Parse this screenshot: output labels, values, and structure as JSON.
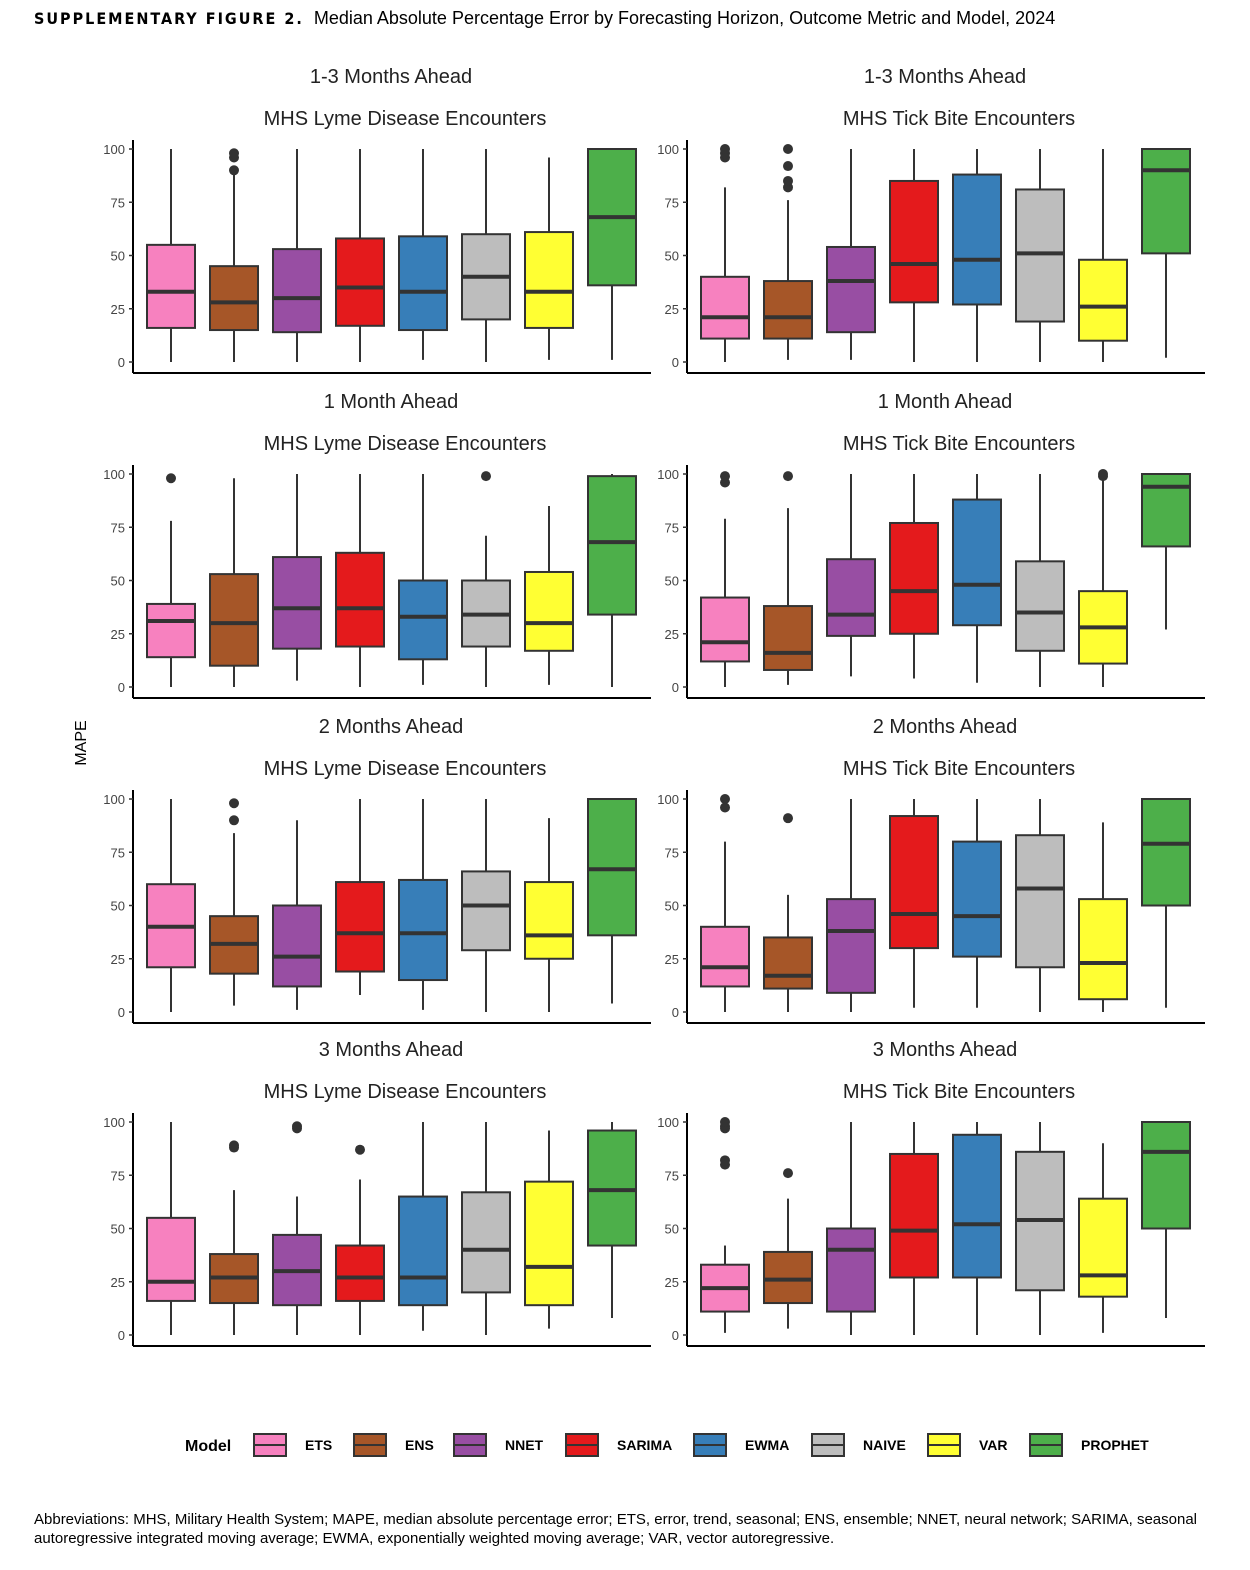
{
  "figure": {
    "label": "SUPPLEMENTARY FIGURE 2.",
    "title": "Median Absolute Percentage Error by Forecasting Horizon, Outcome Metric and Model, 2024"
  },
  "ylabel": "MAPE",
  "legend": {
    "title": "Model",
    "items": [
      {
        "name": "ETS",
        "color": "#F781BF"
      },
      {
        "name": "ENS",
        "color": "#A65628"
      },
      {
        "name": "NNET",
        "color": "#984EA3"
      },
      {
        "name": "SARIMA",
        "color": "#E41A1C"
      },
      {
        "name": "EWMA",
        "color": "#377EB8"
      },
      {
        "name": "NAIVE",
        "color": "#BDBDBD"
      },
      {
        "name": "VAR",
        "color": "#FFFF33"
      },
      {
        "name": "PROPHET",
        "color": "#4DAF4A"
      }
    ]
  },
  "footnote": "Abbreviations: MHS, Military Health System; MAPE, median absolute percentage error; ETS, error, trend, seasonal; ENS, ensemble; NNET, neural network; SARIMA, seasonal autoregressive integrated moving average; EWMA, exponentially weighted moving average; VAR, vector autoregressive.",
  "chart_data": [
    {
      "type": "box",
      "title": "1-3 Months Ahead",
      "subtitle": "MHS Lyme Disease Encounters",
      "ylabel": "MAPE",
      "ylim": [
        0,
        100
      ],
      "yticks": [
        0,
        25,
        50,
        75,
        100
      ],
      "categories": [
        "ETS",
        "ENS",
        "NNET",
        "SARIMA",
        "EWMA",
        "NAIVE",
        "VAR",
        "PROPHET"
      ],
      "boxes": [
        [
          0,
          16,
          33,
          55,
          100
        ],
        [
          0,
          15,
          28,
          45,
          88
        ],
        [
          0,
          14,
          30,
          53,
          100
        ],
        [
          0,
          17,
          35,
          58,
          100
        ],
        [
          1,
          15,
          33,
          59,
          100
        ],
        [
          0,
          20,
          40,
          60,
          100
        ],
        [
          1,
          16,
          33,
          61,
          96
        ],
        [
          1,
          36,
          68,
          100,
          100
        ]
      ],
      "outliers": [
        [],
        [
          90,
          96,
          98
        ],
        [],
        [],
        [],
        [],
        [],
        []
      ]
    },
    {
      "type": "box",
      "title": "1-3 Months Ahead",
      "subtitle": "MHS Tick Bite Encounters",
      "ylabel": "MAPE",
      "ylim": [
        0,
        100
      ],
      "yticks": [
        0,
        25,
        50,
        75,
        100
      ],
      "categories": [
        "ETS",
        "ENS",
        "NNET",
        "SARIMA",
        "EWMA",
        "NAIVE",
        "VAR",
        "PROPHET"
      ],
      "boxes": [
        [
          0,
          11,
          21,
          40,
          82
        ],
        [
          1,
          11,
          21,
          38,
          76
        ],
        [
          1,
          14,
          38,
          54,
          100
        ],
        [
          0,
          28,
          46,
          85,
          100
        ],
        [
          0,
          27,
          48,
          88,
          100
        ],
        [
          0,
          19,
          51,
          81,
          100
        ],
        [
          0,
          10,
          26,
          48,
          100
        ],
        [
          2,
          51,
          90,
          100,
          100
        ]
      ],
      "outliers": [
        [
          96,
          98,
          100
        ],
        [
          82,
          85,
          92,
          100
        ],
        [],
        [],
        [],
        [],
        [],
        []
      ]
    },
    {
      "type": "box",
      "title": "1 Month Ahead",
      "subtitle": "MHS Lyme Disease Encounters",
      "ylabel": "MAPE",
      "ylim": [
        0,
        100
      ],
      "yticks": [
        0,
        25,
        50,
        75,
        100
      ],
      "categories": [
        "ETS",
        "ENS",
        "NNET",
        "SARIMA",
        "EWMA",
        "NAIVE",
        "VAR",
        "PROPHET"
      ],
      "boxes": [
        [
          0,
          14,
          31,
          39,
          78
        ],
        [
          0,
          10,
          30,
          53,
          98
        ],
        [
          3,
          18,
          37,
          61,
          100
        ],
        [
          0,
          19,
          37,
          63,
          100
        ],
        [
          1,
          13,
          33,
          50,
          100
        ],
        [
          0,
          19,
          34,
          50,
          71
        ],
        [
          1,
          17,
          30,
          54,
          85
        ],
        [
          0,
          34,
          68,
          99,
          100
        ]
      ],
      "outliers": [
        [
          98
        ],
        [],
        [],
        [],
        [],
        [
          99
        ],
        [],
        []
      ]
    },
    {
      "type": "box",
      "title": "1 Month Ahead",
      "subtitle": "MHS Tick Bite Encounters",
      "ylabel": "MAPE",
      "ylim": [
        0,
        100
      ],
      "yticks": [
        0,
        25,
        50,
        75,
        100
      ],
      "categories": [
        "ETS",
        "ENS",
        "NNET",
        "SARIMA",
        "EWMA",
        "NAIVE",
        "VAR",
        "PROPHET"
      ],
      "boxes": [
        [
          0,
          12,
          21,
          42,
          79
        ],
        [
          1,
          8,
          16,
          38,
          84
        ],
        [
          5,
          24,
          34,
          60,
          100
        ],
        [
          4,
          25,
          45,
          77,
          100
        ],
        [
          2,
          29,
          48,
          88,
          100
        ],
        [
          0,
          17,
          35,
          59,
          100
        ],
        [
          0,
          11,
          28,
          45,
          97
        ],
        [
          27,
          66,
          94,
          100,
          100
        ]
      ],
      "outliers": [
        [
          96,
          99
        ],
        [
          99
        ],
        [],
        [],
        [],
        [],
        [
          99,
          100
        ],
        []
      ]
    },
    {
      "type": "box",
      "title": "2 Months Ahead",
      "subtitle": "MHS Lyme Disease Encounters",
      "ylabel": "MAPE",
      "ylim": [
        0,
        100
      ],
      "yticks": [
        0,
        25,
        50,
        75,
        100
      ],
      "categories": [
        "ETS",
        "ENS",
        "NNET",
        "SARIMA",
        "EWMA",
        "NAIVE",
        "VAR",
        "PROPHET"
      ],
      "boxes": [
        [
          0,
          21,
          40,
          60,
          100
        ],
        [
          3,
          18,
          32,
          45,
          84
        ],
        [
          1,
          12,
          26,
          50,
          90
        ],
        [
          8,
          19,
          37,
          61,
          100
        ],
        [
          1,
          15,
          37,
          62,
          100
        ],
        [
          0,
          29,
          50,
          66,
          100
        ],
        [
          0,
          25,
          36,
          61,
          91
        ],
        [
          4,
          36,
          67,
          100,
          100
        ]
      ],
      "outliers": [
        [],
        [
          90,
          98
        ],
        [],
        [],
        [],
        [],
        [],
        []
      ]
    },
    {
      "type": "box",
      "title": "2 Months Ahead",
      "subtitle": "MHS Tick Bite Encounters",
      "ylabel": "MAPE",
      "ylim": [
        0,
        100
      ],
      "yticks": [
        0,
        25,
        50,
        75,
        100
      ],
      "categories": [
        "ETS",
        "ENS",
        "NNET",
        "SARIMA",
        "EWMA",
        "NAIVE",
        "VAR",
        "PROPHET"
      ],
      "boxes": [
        [
          0,
          12,
          21,
          40,
          80
        ],
        [
          0,
          11,
          17,
          35,
          55
        ],
        [
          0,
          9,
          38,
          53,
          100
        ],
        [
          2,
          30,
          46,
          92,
          100
        ],
        [
          2,
          26,
          45,
          80,
          100
        ],
        [
          0,
          21,
          58,
          83,
          100
        ],
        [
          0,
          6,
          23,
          53,
          89
        ],
        [
          2,
          50,
          79,
          100,
          100
        ]
      ],
      "outliers": [
        [
          96,
          100
        ],
        [
          91
        ],
        [],
        [],
        [],
        [],
        [],
        []
      ]
    },
    {
      "type": "box",
      "title": "3 Months Ahead",
      "subtitle": "MHS Lyme Disease Encounters",
      "ylabel": "MAPE",
      "ylim": [
        0,
        100
      ],
      "yticks": [
        0,
        25,
        50,
        75,
        100
      ],
      "categories": [
        "ETS",
        "ENS",
        "NNET",
        "SARIMA",
        "EWMA",
        "NAIVE",
        "VAR",
        "PROPHET"
      ],
      "boxes": [
        [
          0,
          16,
          25,
          55,
          100
        ],
        [
          0,
          15,
          27,
          38,
          68
        ],
        [
          0,
          14,
          30,
          47,
          65
        ],
        [
          0,
          16,
          27,
          42,
          73
        ],
        [
          2,
          14,
          27,
          65,
          100
        ],
        [
          0,
          20,
          40,
          67,
          100
        ],
        [
          3,
          14,
          32,
          72,
          96
        ],
        [
          8,
          42,
          68,
          96,
          100
        ]
      ],
      "outliers": [
        [],
        [
          88,
          89
        ],
        [
          97,
          98
        ],
        [
          87
        ],
        [],
        [],
        [],
        []
      ]
    },
    {
      "type": "box",
      "title": "3 Months Ahead",
      "subtitle": "MHS Tick Bite Encounters",
      "ylabel": "MAPE",
      "ylim": [
        0,
        100
      ],
      "yticks": [
        0,
        25,
        50,
        75,
        100
      ],
      "categories": [
        "ETS",
        "ENS",
        "NNET",
        "SARIMA",
        "EWMA",
        "NAIVE",
        "VAR",
        "PROPHET"
      ],
      "boxes": [
        [
          1,
          11,
          22,
          33,
          42
        ],
        [
          3,
          15,
          26,
          39,
          64
        ],
        [
          0,
          11,
          40,
          50,
          100
        ],
        [
          0,
          27,
          49,
          85,
          100
        ],
        [
          0,
          27,
          52,
          94,
          100
        ],
        [
          0,
          21,
          54,
          86,
          100
        ],
        [
          1,
          18,
          28,
          64,
          90
        ],
        [
          8,
          50,
          86,
          100,
          100
        ]
      ],
      "outliers": [
        [
          80,
          82,
          97,
          98,
          100
        ],
        [
          76
        ],
        [],
        [],
        [],
        [],
        [],
        []
      ]
    }
  ]
}
